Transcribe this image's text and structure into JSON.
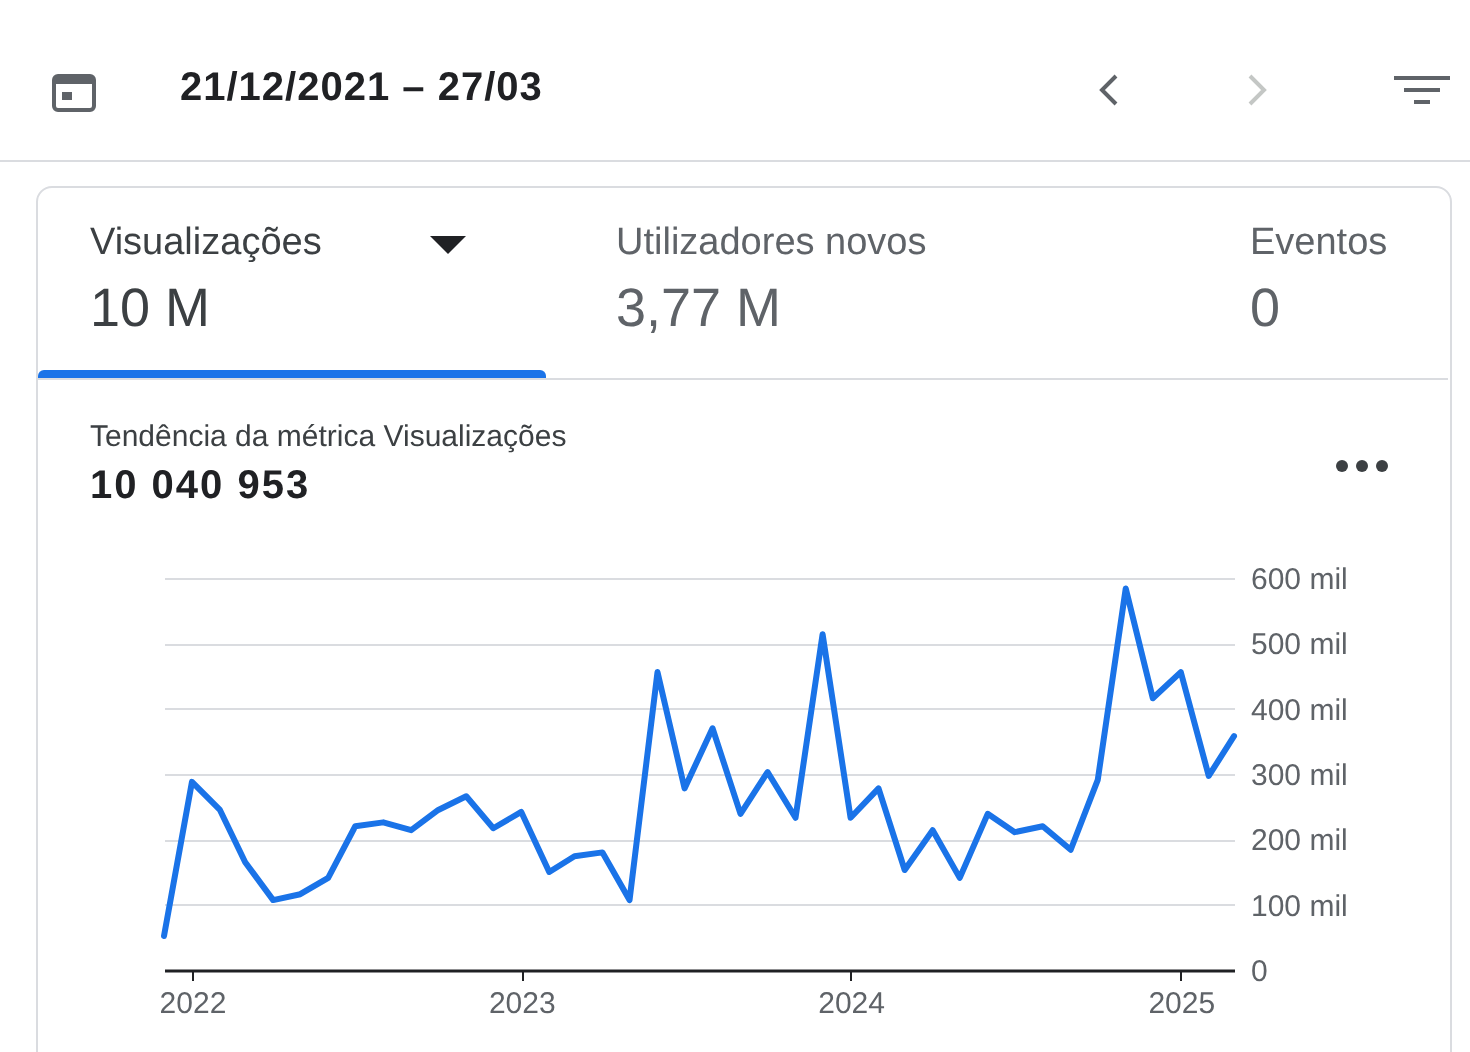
{
  "chart_data": {
    "type": "line",
    "title": "Tendência da métrica Visualizações",
    "subtitle": "10 040 953",
    "annotations": [
      "21/12/2021 – 27/03",
      "Visualizações",
      "10 M",
      "Utilizadores novos",
      "3,77 M",
      "Eventos",
      "0"
    ],
    "x": [
      "2021-12",
      "2022-01",
      "2022-02",
      "2022-03",
      "2022-04",
      "2022-05",
      "2022-06",
      "2022-07",
      "2022-08",
      "2022-09",
      "2022-10",
      "2022-11",
      "2022-12",
      "2023-01",
      "2023-02",
      "2023-03",
      "2023-04",
      "2023-05",
      "2023-06",
      "2023-07",
      "2023-08",
      "2023-09",
      "2023-10",
      "2023-11",
      "2023-12",
      "2024-01",
      "2024-02",
      "2024-03",
      "2024-04",
      "2024-05",
      "2024-06",
      "2024-07",
      "2024-08",
      "2024-09",
      "2024-10",
      "2024-11",
      "2024-12",
      "2025-01",
      "2025-02",
      "2025-03"
    ],
    "series": [
      {
        "color": "#1a73e8",
        "values": [
          52,
          288,
          245,
          165,
          107,
          116,
          141,
          220,
          226,
          214,
          245,
          266,
          217,
          242,
          150,
          174,
          180,
          107,
          456,
          278,
          370,
          239,
          303,
          233,
          514,
          233,
          278,
          153,
          214,
          141,
          239,
          211,
          220,
          184,
          291,
          584,
          416,
          456,
          297,
          358
        ]
      }
    ],
    "xlim": [
      "2021-12",
      "2025-03"
    ],
    "xticks": [
      "2022",
      "2023",
      "2024",
      "2025"
    ],
    "ylim": [
      0,
      600
    ],
    "yticks": [
      0,
      {
        "value": 100,
        "label": "100 mil"
      },
      {
        "value": 200,
        "label": "200 mil"
      },
      {
        "value": 300,
        "label": "300 mil"
      },
      {
        "value": 400,
        "label": "400 mil"
      },
      {
        "value": 500,
        "label": "500 mil"
      },
      {
        "value": 600,
        "label": "600 mil"
      }
    ],
    "grid": "y",
    "marker": "none",
    "line_style": "solid"
  }
}
